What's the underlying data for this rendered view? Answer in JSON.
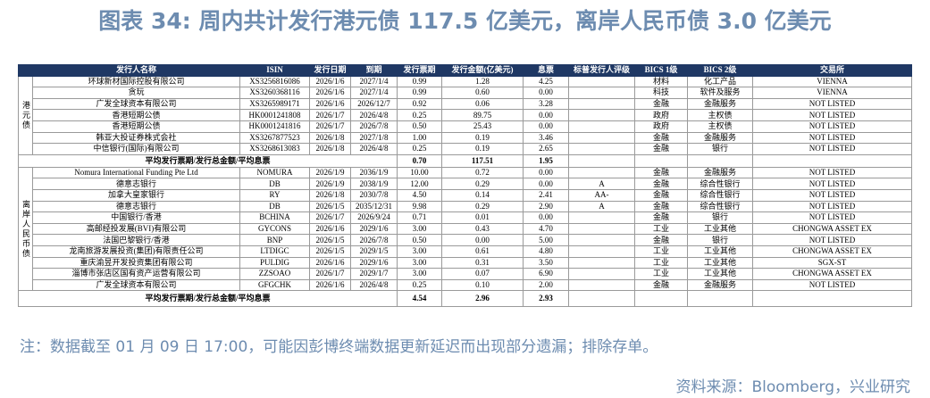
{
  "title": "图表 34: 周内共计发行港元债 117.5 亿美元，离岸人民币债 3.0 亿美元",
  "table": {
    "columns": [
      "发行人名称",
      "ISIN",
      "发行日期",
      "到期",
      "发行票期",
      "发行金额(亿美元)",
      "息票",
      "标普发行人评级",
      "BICS 1级",
      "BICS 2级",
      "交易所"
    ],
    "groups": [
      {
        "label": "港元债",
        "rows": [
          [
            "环球新材国际控股有限公司",
            "XS3256816086",
            "2026/1/6",
            "2027/1/4",
            "0.99",
            "1.28",
            "4.25",
            null,
            "材料",
            "化工产品",
            "VIENNA"
          ],
          [
            "贪玩",
            "XS3260368116",
            "2026/1/6",
            "2027/1/4",
            "0.99",
            "0.60",
            "0.00",
            null,
            "科技",
            "软件及服务",
            "VIENNA"
          ],
          [
            "广发全球资本有限公司",
            "XS3265989171",
            "2026/1/6",
            "2026/12/7",
            "0.92",
            "0.06",
            "3.28",
            null,
            "金融",
            "金融服务",
            "NOT LISTED"
          ],
          [
            "香港短期公债",
            "HK0001241808",
            "2026/1/7",
            "2026/4/8",
            "0.25",
            "89.75",
            "0.00",
            null,
            "政府",
            "主权债",
            "NOT LISTED"
          ],
          [
            "香港短期公债",
            "HK0001241816",
            "2026/1/7",
            "2026/7/8",
            "0.50",
            "25.43",
            "0.00",
            null,
            "政府",
            "主权债",
            "NOT LISTED"
          ],
          [
            "韩亚大投证券株式会社",
            "XS3267877523",
            "2026/1/8",
            "2027/1/8",
            "1.00",
            "0.19",
            "3.46",
            null,
            "金融",
            "金融服务",
            "NOT LISTED"
          ],
          [
            "中信银行(国际)有限公司",
            "XS3268613083",
            "2026/1/8",
            "2026/4/8",
            "0.25",
            "0.19",
            "2.65",
            null,
            "金融",
            "银行",
            "NOT LISTED"
          ]
        ],
        "summary": {
          "label": "平均发行票期/发行总金额/平均息票",
          "values": [
            "0.70",
            "117.51",
            "1.95"
          ]
        }
      },
      {
        "label": "离岸人民币债",
        "rows": [
          [
            "Nomura International Funding Pte Ltd",
            "NOMURA",
            "2026/1/9",
            "2036/1/9",
            "10.00",
            "0.72",
            "0.00",
            null,
            "金融",
            "金融服务",
            "NOT LISTED"
          ],
          [
            "德意志银行",
            "DB",
            "2026/1/9",
            "2038/1/9",
            "12.00",
            "0.29",
            "0.00",
            "A",
            "金融",
            "综合性银行",
            "NOT LISTED"
          ],
          [
            "加拿大皇家银行",
            "RY",
            "2026/1/8",
            "2030/7/8",
            "4.50",
            "0.14",
            "2.41",
            "AA-",
            "金融",
            "综合性银行",
            "NOT LISTED"
          ],
          [
            "德意志银行",
            "DB",
            "2026/1/5",
            "2035/12/31",
            "9.98",
            "0.29",
            "2.90",
            "A",
            "金融",
            "综合性银行",
            "NOT LISTED"
          ],
          [
            "中国银行/香港",
            "BCHINA",
            "2026/1/7",
            "2026/9/24",
            "0.71",
            "0.01",
            "0.00",
            null,
            "金融",
            "银行",
            "NOT LISTED"
          ],
          [
            "高邮经投发展(BVI)有限公司",
            "GYCONS",
            "2026/1/6",
            "2029/1/6",
            "3.00",
            "0.43",
            "4.70",
            null,
            "工业",
            "工业其他",
            "CHONGWA ASSET EX"
          ],
          [
            "法国巴黎银行/香港",
            "BNP",
            "2026/1/5",
            "2026/7/8",
            "0.50",
            "0.00",
            "5.00",
            null,
            "金融",
            "银行",
            "NOT LISTED"
          ],
          [
            "龙南旅游发展投资(集团)有限责任公司",
            "LTDIGC",
            "2026/1/5",
            "2029/1/5",
            "3.00",
            "0.61",
            "4.80",
            null,
            "工业",
            "工业其他",
            "CHONGWA ASSET EX"
          ],
          [
            "重庆渝昱开发投资集团有限公司",
            "PULDIG",
            "2026/1/6",
            "2029/1/6",
            "3.00",
            "0.31",
            "3.50",
            null,
            "工业",
            "工业其他",
            "SGX-ST"
          ],
          [
            "淄博市张店区国有资产运营有限公司",
            "ZZSOAO",
            "2026/1/7",
            "2029/1/7",
            "3.00",
            "0.07",
            "6.90",
            null,
            "工业",
            "工业其他",
            "CHONGWA ASSET EX"
          ],
          [
            "广发全球资本有限公司",
            "GFGCHK",
            "2026/1/6",
            "2026/4/8",
            "0.25",
            "0.10",
            "2.00",
            null,
            "金融",
            "金融服务",
            "NOT LISTED"
          ]
        ],
        "summary": {
          "label": "平均发行票期/发行总金额/平均息票",
          "values": [
            "4.54",
            "2.96",
            "2.93"
          ]
        }
      }
    ]
  },
  "note": "注：数据截至 01 月 09 日 17:00，可能因彭博终端数据更新延迟而出现部分遗漏；排除存单。",
  "source": "资料来源：Bloomberg，兴业研究"
}
